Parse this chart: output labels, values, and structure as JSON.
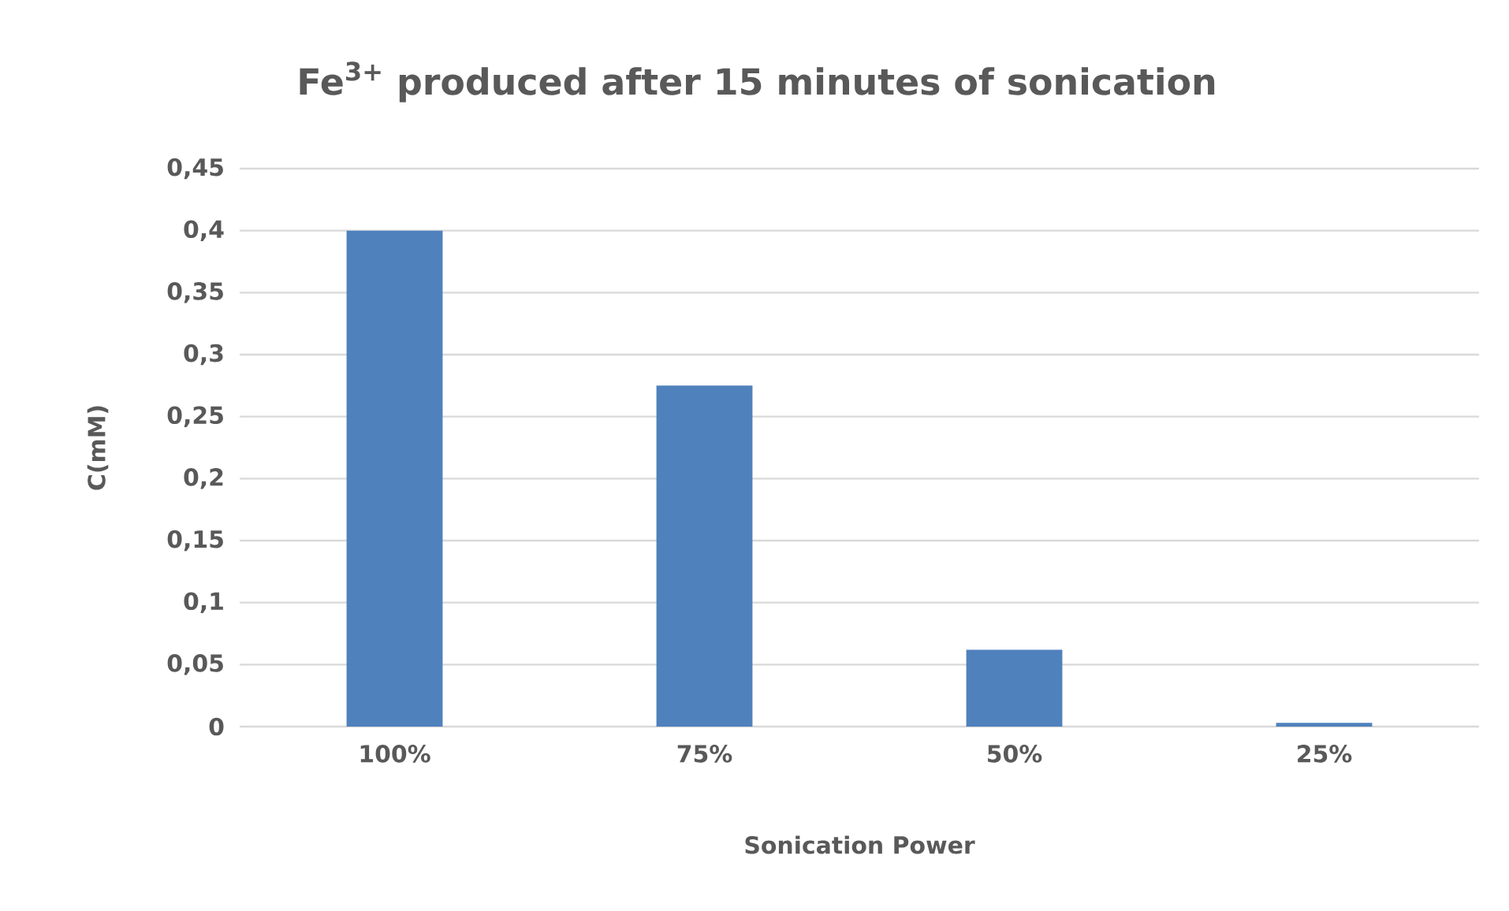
{
  "chart_data": {
    "type": "bar",
    "title": "Fe$^{3+}$ produced after 15 minutes of sonication",
    "xlabel": "Sonication Power",
    "ylabel": "C(mM)",
    "categories": [
      "100%",
      "75%",
      "50%",
      "25%"
    ],
    "values": [
      0.4,
      0.275,
      0.062,
      0.003
    ],
    "color": "#4f81bd",
    "ylim": [
      0,
      0.45
    ],
    "yticks": [
      0,
      {
        "value": 0.05,
        "label": "0,05"
      },
      {
        "value": 0.1,
        "label": "0,1"
      },
      {
        "value": 0.15,
        "label": "0,15"
      },
      {
        "value": 0.2,
        "label": "0,2"
      },
      {
        "value": 0.25,
        "label": "0,25"
      },
      {
        "value": 0.3,
        "label": "0,3"
      },
      {
        "value": 0.35,
        "label": "0,35"
      },
      {
        "value": 0.4,
        "label": "0,4"
      },
      {
        "value": 0.45,
        "label": "0,45"
      }
    ],
    "grid": "y"
  }
}
